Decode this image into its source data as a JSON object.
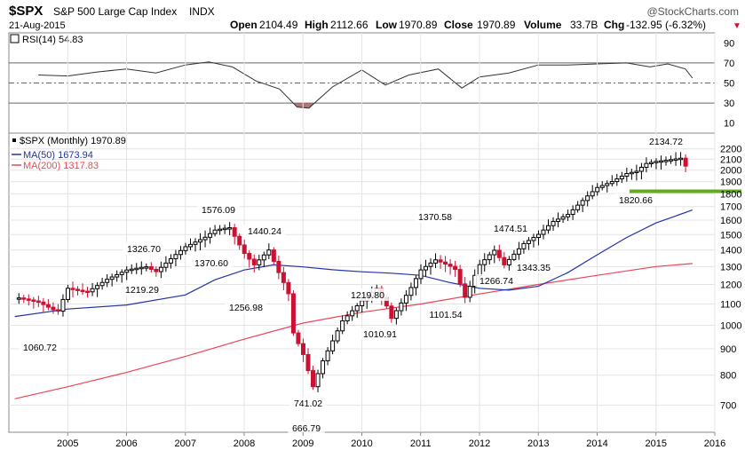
{
  "header": {
    "symbol": "$SPX",
    "name": "S&P 500 Large Cap Index",
    "exchange": "INDX",
    "watermark": "@StockCharts.com",
    "date": "21-Aug-2015",
    "quote": {
      "open_label": "Open",
      "open": "2104.49",
      "high_label": "High",
      "high": "2112.66",
      "low_label": "Low",
      "low": "1970.89",
      "close_label": "Close",
      "close": "1970.89",
      "volume_label": "Volume",
      "volume": "33.7B",
      "chg_label": "Chg",
      "chg": "-132.95 (-6.32%)",
      "chg_arrow": "▼"
    }
  },
  "rsi_legend": "RSI(14) 54.83",
  "price_legend": {
    "spx": "$SPX (Monthly) 1970.89",
    "ma50": "MA(50) 1673.94",
    "ma200": "MA(200) 1317.83"
  },
  "colors": {
    "up": "#000000",
    "down": "#cc1133",
    "ma50": "#2233aa",
    "ma200": "#ee4455",
    "support": "#66aa22",
    "rsi_overbought": "#5a8a5a",
    "rsi_oversold": "#a06868"
  },
  "chart_data": [
    {
      "type": "line",
      "title": "RSI(14)",
      "y_ticks": [
        10,
        30,
        50,
        70,
        90
      ],
      "ylim": [
        0,
        100
      ],
      "reference_levels": [
        30,
        50,
        70
      ],
      "x": [
        2004.5,
        2005.0,
        2005.5,
        2006.0,
        2006.5,
        2007.0,
        2007.4,
        2007.8,
        2008.2,
        2008.6,
        2008.9,
        2009.1,
        2009.5,
        2010.0,
        2010.4,
        2010.8,
        2011.3,
        2011.7,
        2012.0,
        2012.5,
        2013.0,
        2013.5,
        2014.0,
        2014.5,
        2014.9,
        2015.2,
        2015.5,
        2015.62
      ],
      "values": [
        58,
        57,
        61,
        64,
        60,
        68,
        71,
        66,
        52,
        44,
        26,
        25,
        46,
        63,
        48,
        58,
        64,
        45,
        56,
        60,
        68,
        68,
        69,
        70,
        66,
        69,
        64,
        54.83
      ]
    },
    {
      "type": "line",
      "title": "$SPX (Monthly)",
      "y_scale": "log",
      "y_ticks": [
        700,
        800,
        900,
        1000,
        1100,
        1200,
        1300,
        1400,
        1500,
        1600,
        1700,
        1800,
        1900,
        2000,
        2100,
        2200
      ],
      "x_ticks": [
        "2005",
        "2006",
        "2007",
        "2008",
        "2009",
        "2010",
        "2011",
        "2012",
        "2013",
        "2014",
        "2015",
        "2016"
      ],
      "series": [
        {
          "name": "$SPX (Monthly)",
          "x": [
            2004.17,
            2004.5,
            2004.83,
            2005.0,
            2005.33,
            2005.67,
            2006.0,
            2006.33,
            2006.5,
            2006.83,
            2007.0,
            2007.33,
            2007.5,
            2007.75,
            2008.0,
            2008.17,
            2008.42,
            2008.58,
            2008.75,
            2008.83,
            2009.0,
            2009.17,
            2009.33,
            2009.67,
            2010.0,
            2010.25,
            2010.42,
            2010.5,
            2010.83,
            2011.0,
            2011.25,
            2011.58,
            2011.75,
            2012.0,
            2012.25,
            2012.42,
            2012.75,
            2013.0,
            2013.25,
            2013.5,
            2013.83,
            2014.0,
            2014.25,
            2014.5,
            2014.67,
            2014.83,
            2015.0,
            2015.17,
            2015.42,
            2015.58
          ],
          "values": [
            1130,
            1110,
            1060.72,
            1180,
            1160,
            1228,
            1280,
            1300,
            1270,
            1370,
            1420,
            1480,
            1530,
            1549,
            1380,
            1310,
            1400,
            1270,
            1160,
            970,
            880,
            760,
            850,
            1020,
            1115,
            1180,
            1090,
            1030,
            1180,
            1280,
            1340,
            1290,
            1131,
            1310,
            1400,
            1310,
            1440,
            1500,
            1590,
            1640,
            1780,
            1850,
            1900,
            1970,
            1990,
            2060,
            2080,
            2090,
            2110,
            1970.89
          ]
        },
        {
          "name": "MA(50)",
          "x": [
            2004.1,
            2005.0,
            2006.0,
            2007.0,
            2007.5,
            2008.0,
            2008.5,
            2009.0,
            2009.5,
            2010.0,
            2010.5,
            2011.0,
            2011.5,
            2012.0,
            2012.5,
            2013.0,
            2013.5,
            2014.0,
            2014.5,
            2015.0,
            2015.62
          ],
          "values": [
            1040,
            1075,
            1095,
            1145,
            1225,
            1280,
            1310,
            1298,
            1282,
            1270,
            1262,
            1250,
            1210,
            1180,
            1170,
            1190,
            1265,
            1370,
            1480,
            1580,
            1673.94
          ]
        },
        {
          "name": "MA(200)",
          "x": [
            2004.1,
            2005.0,
            2006.0,
            2007.0,
            2008.0,
            2009.0,
            2010.0,
            2011.0,
            2012.0,
            2013.0,
            2014.0,
            2015.0,
            2015.62
          ],
          "values": [
            720,
            760,
            810,
            870,
            940,
            1010,
            1060,
            1100,
            1150,
            1200,
            1250,
            1300,
            1317.83
          ]
        }
      ],
      "annotations": [
        "1060.72",
        "1326.70",
        "1219.29",
        "1576.09",
        "1370.60",
        "1440.24",
        "1256.98",
        "741.02",
        "666.79",
        "1219.80",
        "1010.91",
        "1370.58",
        "1101.54",
        "1474.51",
        "1266.74",
        "1343.35",
        "1820.66",
        "2134.72"
      ],
      "support_level": 1820
    }
  ]
}
